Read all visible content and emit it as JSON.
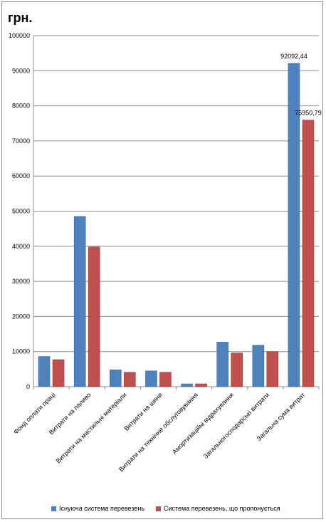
{
  "chart_data": {
    "type": "bar",
    "unit_label": "грн.",
    "categories": [
      "Фонд оплати праці",
      "Витрати на паливо",
      "Витрати на мастильні матеріали",
      "Витрати на шини",
      "Витрати на технічне обслуговування",
      "Амортизаційні відрахування",
      "Загальногосподарські витрати",
      "Загальна сума витрат"
    ],
    "series": [
      {
        "name": "Існуюча система перевезень",
        "color": "#4f81bd",
        "values": [
          8600,
          48500,
          4800,
          4500,
          800,
          12700,
          11800,
          92092.44
        ]
      },
      {
        "name": "Система перевезень, що пропонується",
        "color": "#c0504d",
        "values": [
          7700,
          39800,
          4100,
          4100,
          800,
          9600,
          10000,
          75950.79
        ]
      }
    ],
    "data_labels": [
      {
        "series": 0,
        "index": 7,
        "text": "92092,44"
      },
      {
        "series": 1,
        "index": 7,
        "text": "75950,79"
      }
    ],
    "ylim": [
      0,
      100000
    ],
    "yticks": [
      0,
      10000,
      20000,
      30000,
      40000,
      50000,
      60000,
      70000,
      80000,
      90000,
      100000
    ],
    "grid": true,
    "legend_position": "bottom"
  }
}
